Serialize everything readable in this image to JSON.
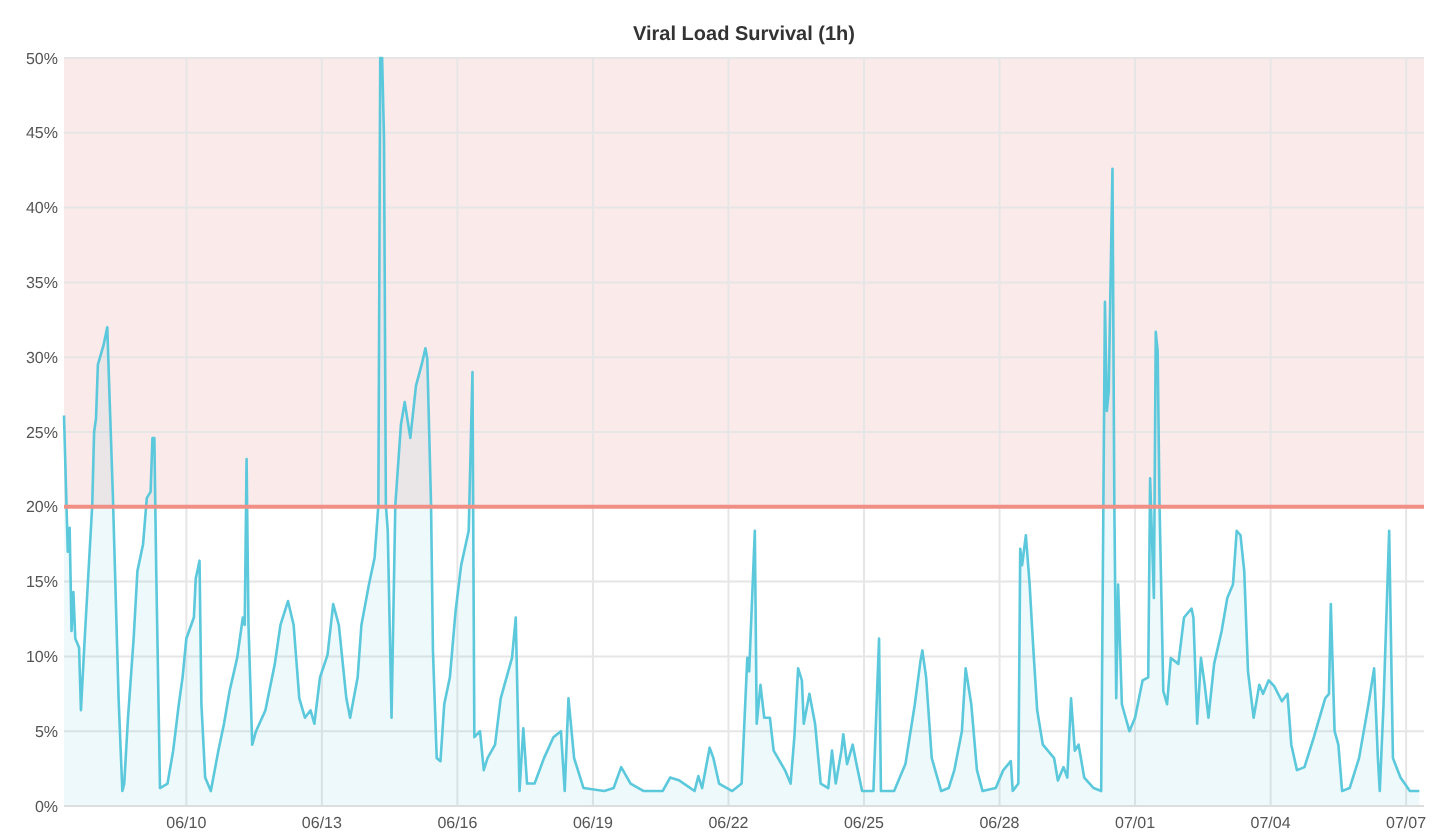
{
  "chart_data": {
    "type": "area",
    "title": "Viral Load Survival (1h)",
    "x": [
      "--06-07T07:00",
      "--06-07T09:00",
      "--06-07T10:00",
      "--06-07T11:00",
      "--06-07T12:00",
      "--06-07T13:00",
      "--06-07T15:00",
      "--06-07T16:00",
      "--06-07T18:00",
      "--06-07T22:00",
      "--06-07T23:00",
      "--06-08T00:00",
      "--06-08T01:00",
      "--06-08T04:00",
      "--06-08T06:00",
      "--06-08T07:00",
      "--06-08T09:00",
      "--06-08T10:00",
      "--06-08T12:00",
      "--06-08T14:00",
      "--06-08T15:00",
      "--06-08T17:00",
      "--06-08T20:00",
      "--06-08T22:00",
      "--06-09T01:00",
      "--06-09T03:00",
      "--06-09T05:00",
      "--06-09T06:00",
      "--06-09T07:00",
      "--06-09T08:00",
      "--06-09T10:00",
      "--06-09T14:00",
      "--06-09T17:00",
      "--06-09T20:00",
      "--06-09T22:00",
      "--06-10T00:00",
      "--06-10T04:00",
      "--06-10T05:00",
      "--06-10T07:00",
      "--06-10T08:00",
      "--06-10T10:00",
      "--06-10T13:00",
      "--06-10T17:00",
      "--06-10T20:00",
      "--06-10T23:00",
      "--06-11T03:00",
      "--06-11T06:00",
      "--06-11T07:00",
      "--06-11T08:00",
      "--06-11T09:00",
      "--06-11T11:00",
      "--06-11T13:00",
      "--06-11T18:00",
      "--06-11T23:00",
      "--06-12T02:00",
      "--06-12T06:00",
      "--06-12T09:00",
      "--06-12T12:00",
      "--06-12T15:00",
      "--06-12T18:00",
      "--06-12T20:00",
      "--06-12T23:00",
      "--06-13T03:00",
      "--06-13T06:00",
      "--06-13T09:00",
      "--06-13T13:00",
      "--06-13T15:00",
      "--06-13T19:00",
      "--06-13T21:00",
      "--06-14T01:00",
      "--06-14T04:00",
      "--06-14T06:00",
      "--06-14T07:00",
      "--06-14T08:00",
      "--06-14T09:00",
      "--06-14T10:00",
      "--06-14T11:00",
      "--06-14T13:00",
      "--06-14T15:00",
      "--06-14T17:00",
      "--06-14T18:00",
      "--06-14T20:00",
      "--06-14T23:00",
      "--06-15T02:00",
      "--06-15T05:00",
      "--06-15T07:00",
      "--06-15T08:00",
      "--06-15T10:00",
      "--06-15T11:00",
      "--06-15T13:00",
      "--06-15T15:00",
      "--06-15T17:00",
      "--06-15T20:00",
      "--06-15T23:00",
      "--06-16T02:00",
      "--06-16T06:00",
      "--06-16T08:00",
      "--06-16T09:00",
      "--06-16T12:00",
      "--06-16T14:00",
      "--06-16T16:00",
      "--06-16T20:00",
      "--06-16T23:00",
      "--06-17T05:00",
      "--06-17T07:00",
      "--06-17T09:00",
      "--06-17T11:00",
      "--06-17T13:00",
      "--06-17T17:00",
      "--06-17T22:00",
      "--06-18T03:00",
      "--06-18T07:00",
      "--06-18T09:00",
      "--06-18T11:00",
      "--06-18T14:00",
      "--06-18T19:00",
      "--06-19T06:00",
      "--06-19T11:00",
      "--06-19T15:00",
      "--06-19T20:00",
      "--06-20T03:00",
      "--06-20T13:00",
      "--06-20T17:00",
      "--06-20T22:00",
      "--06-21T06:00",
      "--06-21T08:00",
      "--06-21T10:00",
      "--06-21T14:00",
      "--06-21T16:00",
      "--06-21T19:00",
      "--06-22T02:00",
      "--06-22T07:00",
      "--06-22T10:00",
      "--06-22T11:00",
      "--06-22T14:00",
      "--06-22T15:00",
      "--06-22T17:00",
      "--06-22T19:00",
      "--06-22T22:00",
      "--06-23T00:00",
      "--06-23T06:00",
      "--06-23T09:00",
      "--06-23T11:00",
      "--06-23T13:00",
      "--06-23T15:00",
      "--06-23T16:00",
      "--06-23T19:00",
      "--06-23T22:00",
      "--06-24T01:00",
      "--06-24T05:00",
      "--06-24T07:00",
      "--06-24T09:00",
      "--06-24T12:00",
      "--06-24T13:00",
      "--06-24T15:00",
      "--06-24T18:00",
      "--06-24T20:00",
      "--06-24T23:00",
      "--06-25T05:00",
      "--06-25T08:00",
      "--06-25T09:00",
      "--06-25T16:00",
      "--06-25T22:00",
      "--06-26T03:00",
      "--06-26T06:00",
      "--06-26T07:00",
      "--06-26T09:00",
      "--06-26T12:00",
      "--06-26T17:00",
      "--06-26T21:00",
      "--06-27T00:00",
      "--06-27T04:00",
      "--06-27T06:00",
      "--06-27T09:00",
      "--06-27T12:00",
      "--06-27T15:00",
      "--06-27T22:00",
      "--06-28T02:00",
      "--06-28T06:00",
      "--06-28T07:00",
      "--06-28T10:00",
      "--06-28T11:00",
      "--06-28T12:00",
      "--06-28T14:00",
      "--06-28T16:00",
      "--06-28T18:00",
      "--06-28T20:00",
      "--06-28T23:00",
      "--06-29T05:00",
      "--06-29T07:00",
      "--06-29T10:00",
      "--06-29T12:00",
      "--06-29T14:00",
      "--06-29T16:00",
      "--06-29T18:00",
      "--06-29T21:00",
      "--06-30T02:00",
      "--06-30T06:00",
      "--06-30T08:00",
      "--06-30T09:00",
      "--06-30T10:00",
      "--06-30T12:00",
      "--06-30T13:00",
      "--06-30T14:00",
      "--06-30T15:00",
      "--06-30T17:00",
      "--06-30T19:00",
      "--06-30T21:00",
      "--07-01T00:00",
      "--07-01T04:00",
      "--07-01T07:00",
      "--07-01T08:00",
      "--07-01T10:00",
      "--07-01T11:00",
      "--07-01T12:00",
      "--07-01T13:00",
      "--07-01T15:00",
      "--07-01T17:00",
      "--07-01T19:00",
      "--07-01T23:00",
      "--07-02T02:00",
      "--07-02T06:00",
      "--07-02T07:00",
      "--07-02T09:00",
      "--07-02T11:00",
      "--07-02T13:00",
      "--07-02T15:00",
      "--07-02T18:00",
      "--07-02T22:00",
      "--07-03T01:00",
      "--07-03T04:00",
      "--07-03T06:00",
      "--07-03T08:00",
      "--07-03T10:00",
      "--07-03T12:00",
      "--07-03T15:00",
      "--07-03T18:00",
      "--07-03T20:00",
      "--07-03T23:00",
      "--07-04T02:00",
      "--07-04T06:00",
      "--07-04T09:00",
      "--07-04T11:00",
      "--07-04T14:00",
      "--07-04T18:00",
      "--07-04T23:00",
      "--07-05T05:00",
      "--07-05T07:00",
      "--07-05T08:00",
      "--07-05T10:00",
      "--07-05T12:00",
      "--07-05T14:00",
      "--07-05T18:00",
      "--07-05T23:00",
      "--07-06T04:00",
      "--07-06T07:00",
      "--07-06T09:00",
      "--07-06T10:00",
      "--07-06T12:00",
      "--07-06T15:00",
      "--07-06T17:00",
      "--07-06T21:00",
      "--07-07T02:00",
      "--07-07T07:00"
    ],
    "series": [
      {
        "color": "#5bc8dc",
        "values": [
          26.1,
          17,
          18.6,
          11.7,
          14.3,
          11.2,
          10.6,
          6.4,
          11.2,
          20.1,
          25,
          25.9,
          29.5,
          30.8,
          32,
          28.1,
          20.6,
          16.1,
          7.2,
          1,
          1.5,
          5.9,
          11.2,
          15.7,
          17.5,
          20.6,
          21,
          24.6,
          24.6,
          15.7,
          1.2,
          1.5,
          3.7,
          6.8,
          8.6,
          11.2,
          12.6,
          15.2,
          16.4,
          6.8,
          1.9,
          1,
          3.7,
          5.5,
          7.7,
          9.9,
          12.6,
          12.1,
          23.2,
          12.1,
          4.1,
          5,
          6.4,
          9.5,
          12.1,
          13.7,
          12.1,
          7.2,
          5.9,
          6.4,
          5.5,
          8.6,
          10.1,
          13.5,
          12.1,
          7.2,
          5.9,
          8.6,
          12.1,
          14.8,
          16.6,
          20.1,
          50,
          50,
          44.6,
          20.1,
          18.4,
          5.9,
          20.1,
          23.7,
          25.5,
          27,
          24.6,
          28.1,
          29.5,
          30.6,
          29.9,
          20.1,
          10.4,
          3.2,
          3,
          6.8,
          8.6,
          13,
          16.1,
          18.4,
          29,
          4.6,
          5,
          2.4,
          3.2,
          4.1,
          7.2,
          9.9,
          12.6,
          1,
          5.2,
          1.5,
          1.5,
          3.2,
          4.6,
          5,
          1,
          7.2,
          3.2,
          1.2,
          1,
          1.2,
          2.6,
          1.5,
          1,
          1,
          1.9,
          1.7,
          1,
          2,
          1.2,
          3.9,
          3.2,
          1.5,
          1,
          1.5,
          9.9,
          9,
          18.4,
          5.5,
          8.1,
          5.9,
          5.9,
          3.7,
          2.4,
          1.5,
          4.6,
          9.2,
          8.4,
          5.5,
          7.5,
          5.5,
          1.5,
          1.2,
          3.7,
          1.5,
          3.7,
          4.8,
          2.8,
          4.1,
          2.8,
          1,
          1,
          11.2,
          1,
          1,
          2.8,
          6.8,
          9.7,
          10.4,
          8.6,
          3.2,
          1,
          1.2,
          2.4,
          5,
          9.2,
          6.8,
          2.4,
          1,
          1.2,
          2.4,
          3,
          1,
          1.5,
          17.2,
          16.1,
          18.1,
          14.8,
          10.4,
          6.4,
          4.1,
          3.2,
          1.7,
          2.6,
          1.9,
          7.2,
          3.7,
          4.1,
          1.9,
          1.2,
          1,
          33.7,
          26.4,
          27.7,
          42.6,
          20.1,
          7.2,
          14.8,
          6.8,
          5.9,
          5,
          5.9,
          8.4,
          8.6,
          21.9,
          13.9,
          31.7,
          30.4,
          20.1,
          7.7,
          6.8,
          9.9,
          9.5,
          12.6,
          13.2,
          12.6,
          5.5,
          9.9,
          8.1,
          5.9,
          9.5,
          11.7,
          13.9,
          14.8,
          18.4,
          18.1,
          15.7,
          9,
          5.9,
          8.1,
          7.5,
          8.4,
          8,
          7,
          7.5,
          4.1,
          2.4,
          2.6,
          4.6,
          7.2,
          7.5,
          13.5,
          5,
          4.1,
          1,
          1.2,
          3.2,
          6.8,
          9.2,
          3.2,
          1,
          6.8,
          18.4,
          3.2,
          1.9,
          1,
          1
        ]
      }
    ],
    "xlim": [
      "--06-07T07:00",
      "--07-07T09:30"
    ],
    "xticks": [
      {
        "value": "--06-10",
        "label": "06/10"
      },
      {
        "value": "--06-13",
        "label": "06/13"
      },
      {
        "value": "--06-16",
        "label": "06/16"
      },
      {
        "value": "--06-19",
        "label": "06/19"
      },
      {
        "value": "--06-22",
        "label": "06/22"
      },
      {
        "value": "--06-25",
        "label": "06/25"
      },
      {
        "value": "--06-28",
        "label": "06/28"
      },
      {
        "value": "--07-01",
        "label": "07/01"
      },
      {
        "value": "--07-04",
        "label": "07/04"
      },
      {
        "value": "--07-07",
        "label": "07/07"
      }
    ],
    "ylim": [
      0,
      50
    ],
    "yticks": [
      {
        "value": 0,
        "label": "0%"
      },
      {
        "value": 5,
        "label": "5%"
      },
      {
        "value": 10,
        "label": "10%"
      },
      {
        "value": 15,
        "label": "15%"
      },
      {
        "value": 20,
        "label": "20%"
      },
      {
        "value": 25,
        "label": "25%"
      },
      {
        "value": 30,
        "label": "30%"
      },
      {
        "value": 35,
        "label": "35%"
      },
      {
        "value": 40,
        "label": "40%"
      },
      {
        "value": 45,
        "label": "45%"
      },
      {
        "value": 50,
        "label": "50%"
      }
    ],
    "bands": [
      {
        "axis": "y",
        "from": 20,
        "to": 50,
        "color": "#fbeaea"
      }
    ],
    "ref_lines": [
      {
        "axis": "y",
        "value": 20,
        "color": "#ef8f85"
      }
    ],
    "grid": true,
    "marker": "none",
    "line_style": "solid"
  }
}
